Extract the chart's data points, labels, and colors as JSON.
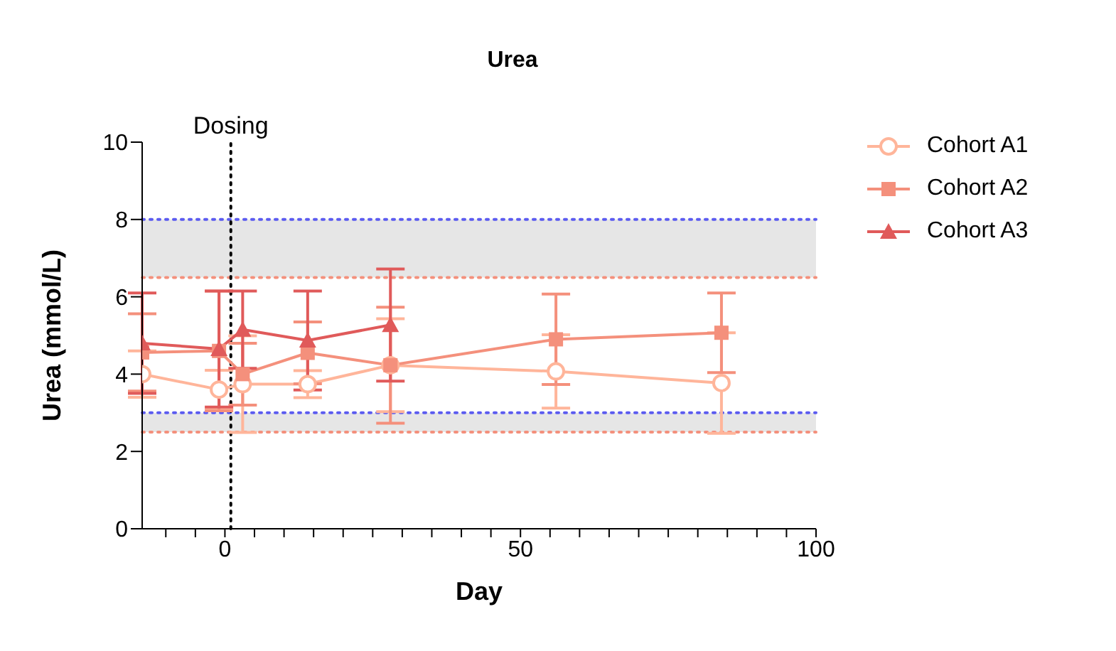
{
  "chart_data": {
    "type": "line",
    "title": "Urea",
    "xlabel": "Day",
    "ylabel": "Urea (mmol/L)",
    "xlim": [
      -14,
      100
    ],
    "xticks": [
      {
        "value": -10,
        "label": null
      },
      {
        "value": -5,
        "label": null
      },
      0,
      {
        "value": 5,
        "label": null
      },
      {
        "value": 10,
        "label": null
      },
      {
        "value": 15,
        "label": null
      },
      {
        "value": 20,
        "label": null
      },
      {
        "value": 25,
        "label": null
      },
      {
        "value": 30,
        "label": null
      },
      {
        "value": 35,
        "label": null
      },
      {
        "value": 40,
        "label": null
      },
      {
        "value": 45,
        "label": null
      },
      50,
      {
        "value": 55,
        "label": null
      },
      {
        "value": 60,
        "label": null
      },
      {
        "value": 65,
        "label": null
      },
      {
        "value": 70,
        "label": null
      },
      {
        "value": 75,
        "label": null
      },
      {
        "value": 80,
        "label": null
      },
      {
        "value": 85,
        "label": null
      },
      {
        "value": 90,
        "label": null
      },
      {
        "value": 95,
        "label": null
      },
      100
    ],
    "ylim": [
      0,
      10
    ],
    "yticks": [
      0,
      2,
      4,
      6,
      8,
      10
    ],
    "grid": false,
    "legend": "top right",
    "line_style": "solid",
    "series": [
      {
        "name": "Cohort A1",
        "color": "#ffb59a",
        "marker": "circle",
        "x": [
          -14,
          -1,
          3,
          14,
          28,
          56,
          84
        ],
        "values": [
          4.0,
          3.6,
          3.74,
          3.74,
          4.23,
          4.07,
          3.77
        ],
        "errors": [
          0.6,
          0.5,
          1.25,
          0.35,
          1.2,
          0.95,
          1.3
        ]
      },
      {
        "name": "Cohort A2",
        "color": "#f4907c",
        "marker": "square",
        "x": [
          -14,
          -1,
          3,
          14,
          28,
          56,
          84
        ],
        "values": [
          4.56,
          4.6,
          4.0,
          4.55,
          4.23,
          4.9,
          5.07
        ],
        "errors": [
          1.0,
          1.55,
          0.8,
          0.8,
          1.5,
          1.17,
          1.03
        ]
      },
      {
        "name": "Cohort A3",
        "color": "#e05a5a",
        "marker": "triangle",
        "x": [
          -14,
          -1,
          3,
          14,
          28
        ],
        "values": [
          4.8,
          4.65,
          5.15,
          4.87,
          5.27
        ],
        "errors": [
          1.3,
          1.5,
          1.0,
          1.28,
          1.45
        ]
      }
    ],
    "bands": [
      {
        "axis": "y",
        "from": 6.5,
        "to": 8,
        "color": "#e6e6e6"
      },
      {
        "axis": "y",
        "from": 2.5,
        "to": 3,
        "color": "#e6e6e6"
      }
    ],
    "ref_lines": [
      {
        "axis": "y",
        "value": 8,
        "color": "#5b5bf0",
        "line_style": "dotted"
      },
      {
        "axis": "y",
        "value": 6.5,
        "color": "#f4907c",
        "line_style": "dotted"
      },
      {
        "axis": "y",
        "value": 3,
        "color": "#5b5bf0",
        "line_style": "dotted"
      },
      {
        "axis": "y",
        "value": 2.5,
        "color": "#f4907c",
        "line_style": "dotted"
      },
      {
        "axis": "x",
        "value": 1,
        "label": "Dosing",
        "color": "#000000",
        "line_style": "dotted"
      }
    ]
  }
}
